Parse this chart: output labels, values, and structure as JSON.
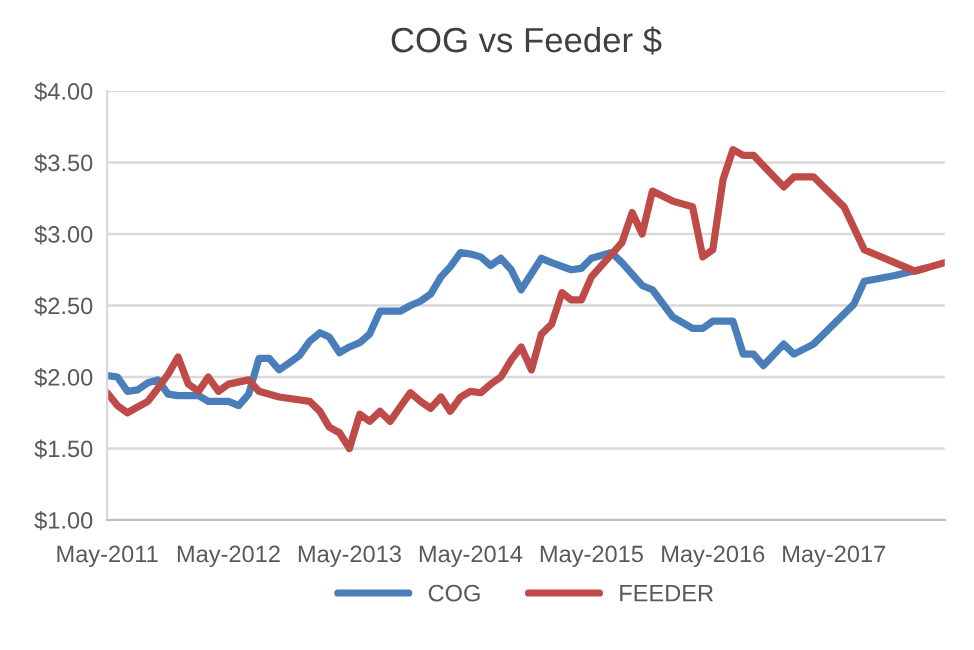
{
  "chart_data": {
    "type": "line",
    "title": "COG vs Feeder $",
    "xlim": [
      "2011-05",
      "2018-04"
    ],
    "xticks": [
      {
        "value": "2011-05",
        "label": "May-2011"
      },
      {
        "value": "2012-05",
        "label": "May-2012"
      },
      {
        "value": "2013-05",
        "label": "May-2013"
      },
      {
        "value": "2014-05",
        "label": "May-2014"
      },
      {
        "value": "2015-05",
        "label": "May-2015"
      },
      {
        "value": "2016-05",
        "label": "May-2016"
      },
      {
        "value": "2017-05",
        "label": "May-2017"
      }
    ],
    "ylim": [
      1,
      4
    ],
    "yticks": [
      {
        "value": 1,
        "label": "$1.00"
      },
      {
        "value": 1.5,
        "label": "$1.50"
      },
      {
        "value": 2,
        "label": "$2.00"
      },
      {
        "value": 2.5,
        "label": "$2.50"
      },
      {
        "value": 3,
        "label": "$3.00"
      },
      {
        "value": 3.5,
        "label": "$3.50"
      },
      {
        "value": 4,
        "label": "$4.00"
      }
    ],
    "grid": "y",
    "legend": "bottom",
    "marker": "none",
    "line_style": "solid",
    "series": [
      {
        "name": "COG",
        "color": "#4a7ebb",
        "x": [
          "2011-05",
          "2011-06",
          "2011-07",
          "2011-08",
          "2011-09",
          "2011-10",
          "2011-11",
          "2011-12",
          "2012-02",
          "2012-03",
          "2012-05",
          "2012-06",
          "2012-07",
          "2012-08",
          "2012-09",
          "2012-10",
          "2012-11",
          "2012-12",
          "2013-01",
          "2013-02",
          "2013-03",
          "2013-04",
          "2013-05",
          "2013-06",
          "2013-07",
          "2013-08",
          "2013-10",
          "2013-11",
          "2013-12",
          "2014-01",
          "2014-02",
          "2014-03",
          "2014-04",
          "2014-05",
          "2014-06",
          "2014-07",
          "2014-08",
          "2014-09",
          "2014-10",
          "2014-12",
          "2015-01",
          "2015-03",
          "2015-04",
          "2015-05",
          "2015-07",
          "2015-08",
          "2015-10",
          "2015-11",
          "2016-01",
          "2016-03",
          "2016-04",
          "2016-05",
          "2016-07",
          "2016-08",
          "2016-09",
          "2016-10",
          "2016-12",
          "2017-01",
          "2017-03",
          "2017-05",
          "2017-07",
          "2017-08",
          "2017-11",
          "2018-02"
        ],
        "values": [
          2.01,
          2.0,
          1.9,
          1.91,
          1.96,
          1.98,
          1.88,
          1.87,
          1.87,
          1.83,
          1.83,
          1.8,
          1.88,
          2.13,
          2.13,
          2.05,
          2.1,
          2.15,
          2.25,
          2.31,
          2.28,
          2.17,
          2.21,
          2.24,
          2.3,
          2.46,
          2.46,
          2.5,
          2.53,
          2.58,
          2.7,
          2.77,
          2.87,
          2.86,
          2.84,
          2.78,
          2.83,
          2.75,
          2.61,
          2.83,
          2.8,
          2.75,
          2.76,
          2.83,
          2.87,
          2.8,
          2.64,
          2.61,
          2.42,
          2.34,
          2.34,
          2.39,
          2.39,
          2.16,
          2.16,
          2.08,
          2.23,
          2.16,
          2.23,
          2.37,
          2.51,
          2.67,
          2.71,
          2.76
        ]
      },
      {
        "name": "FEEDER",
        "color": "#be4b48",
        "x": [
          "2011-05",
          "2011-06",
          "2011-07",
          "2011-08",
          "2011-09",
          "2011-10",
          "2011-11",
          "2011-12",
          "2012-01",
          "2012-02",
          "2012-03",
          "2012-04",
          "2012-05",
          "2012-07",
          "2012-08",
          "2012-10",
          "2013-01",
          "2013-02",
          "2013-03",
          "2013-04",
          "2013-05",
          "2013-06",
          "2013-07",
          "2013-08",
          "2013-09",
          "2013-10",
          "2013-11",
          "2013-12",
          "2014-01",
          "2014-02",
          "2014-03",
          "2014-04",
          "2014-05",
          "2014-06",
          "2014-07",
          "2014-08",
          "2014-09",
          "2014-10",
          "2014-11",
          "2014-12",
          "2015-01",
          "2015-02",
          "2015-03",
          "2015-04",
          "2015-05",
          "2015-08",
          "2015-09",
          "2015-10",
          "2015-11",
          "2016-01",
          "2016-03",
          "2016-04",
          "2016-05",
          "2016-06",
          "2016-07",
          "2016-08",
          "2016-09",
          "2016-12",
          "2017-01",
          "2017-03",
          "2017-06",
          "2017-08",
          "2017-11",
          "2018-01",
          "2018-04"
        ],
        "values": [
          1.89,
          1.8,
          1.75,
          1.79,
          1.83,
          1.92,
          2.02,
          2.14,
          1.95,
          1.9,
          2.0,
          1.9,
          1.95,
          1.98,
          1.9,
          1.86,
          1.83,
          1.76,
          1.65,
          1.61,
          1.5,
          1.74,
          1.69,
          1.76,
          1.69,
          1.79,
          1.89,
          1.83,
          1.78,
          1.86,
          1.76,
          1.86,
          1.9,
          1.89,
          1.95,
          2.0,
          2.12,
          2.21,
          2.05,
          2.3,
          2.37,
          2.59,
          2.54,
          2.54,
          2.7,
          2.94,
          3.15,
          3.0,
          3.3,
          3.23,
          3.19,
          2.84,
          2.89,
          3.38,
          3.59,
          3.55,
          3.55,
          3.33,
          3.4,
          3.4,
          3.19,
          2.89,
          2.8,
          2.74,
          2.8
        ]
      }
    ]
  }
}
